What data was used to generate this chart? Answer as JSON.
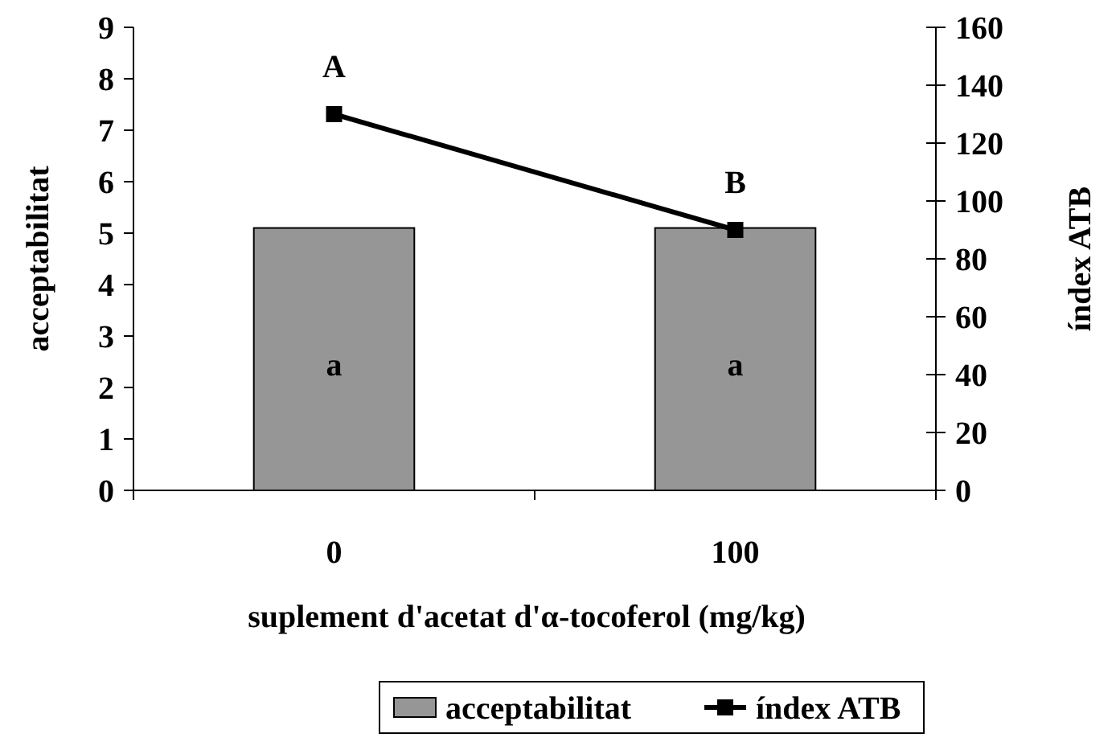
{
  "chart_data": {
    "type": "bar",
    "categories": [
      "0",
      "100"
    ],
    "xlabel": "suplement d'acetat d'α-tocoferol (mg/kg)",
    "ylabel": "acceptabilitat",
    "y2label": "índex ATB",
    "series": [
      {
        "name": "acceptabilitat",
        "color": "#969696",
        "values": [
          5.1,
          5.1
        ]
      },
      {
        "name": "índex ATB",
        "type": "line",
        "axis": "y2",
        "color": "#000000",
        "values": [
          130,
          90
        ]
      }
    ],
    "ylim": [
      0,
      9
    ],
    "yticks": [
      0,
      1,
      2,
      3,
      4,
      5,
      6,
      7,
      8,
      9
    ],
    "y2lim": [
      0,
      160
    ],
    "y2ticks": [
      0,
      20,
      40,
      60,
      80,
      100,
      120,
      140,
      160
    ],
    "marker": "square",
    "grid": false,
    "legend": "bottom",
    "annotations": [
      "A",
      "B",
      "a",
      "a"
    ]
  }
}
